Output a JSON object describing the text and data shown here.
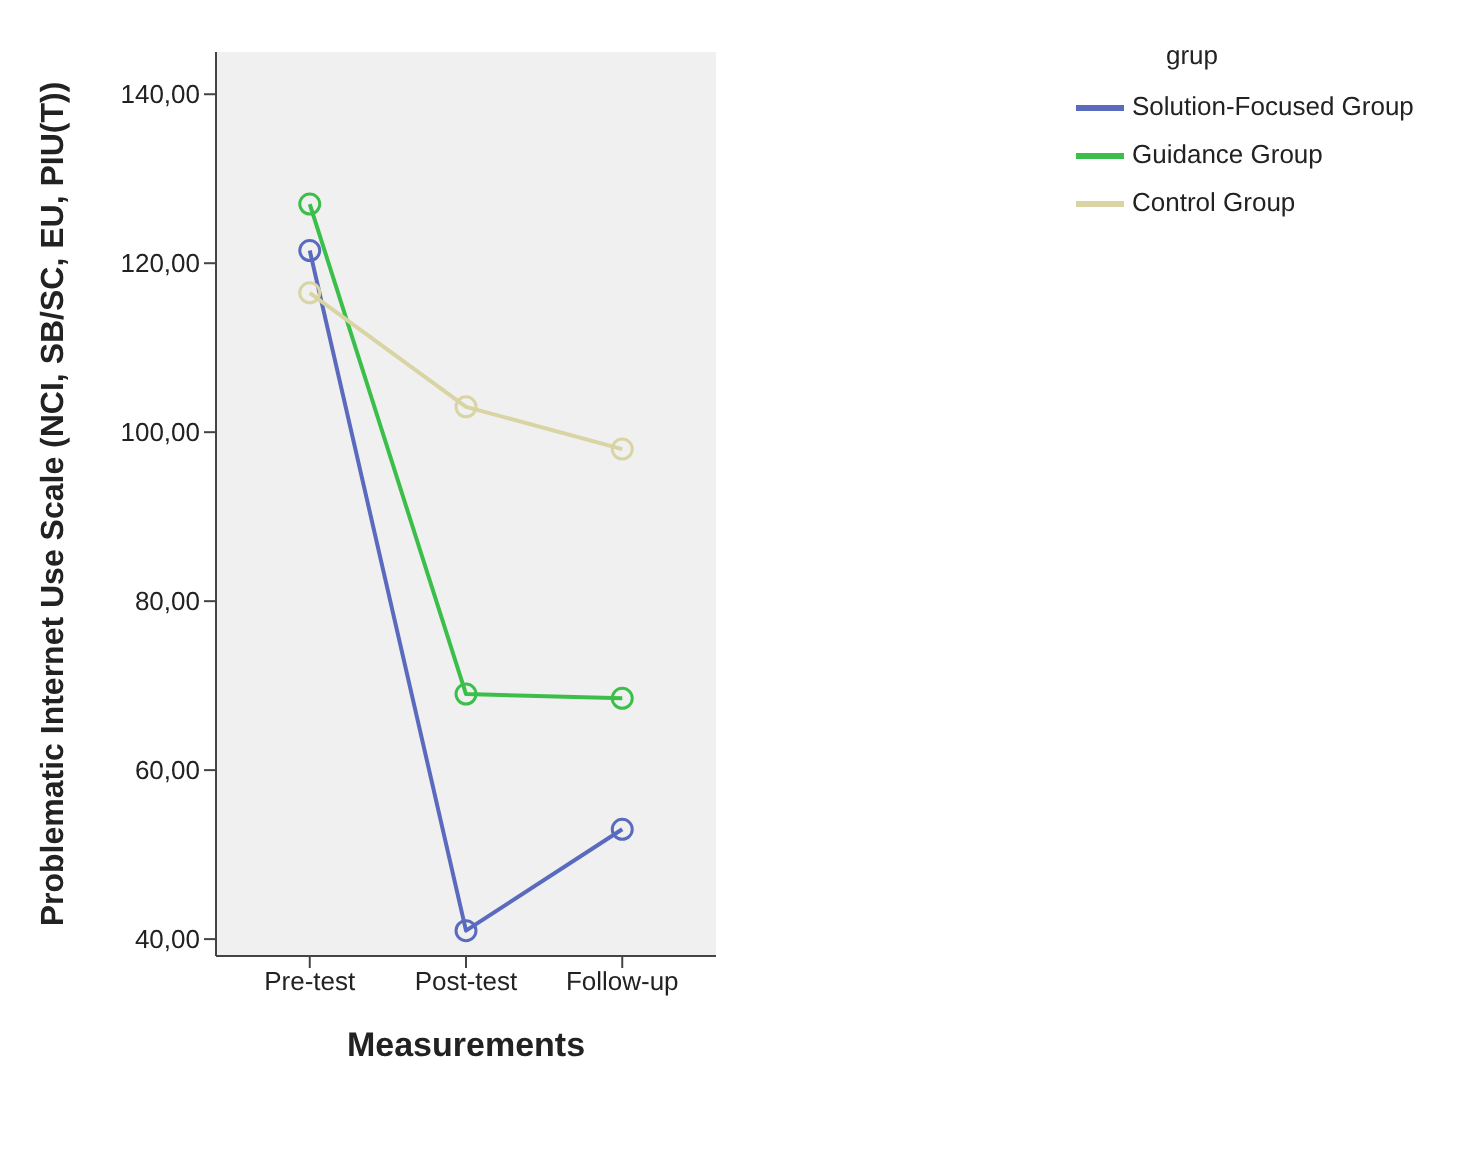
{
  "chart_data": {
    "type": "line",
    "xlabel": "Measurements",
    "ylabel": "Problematic Internet Use Scale (NCI, SB/SC, EU, PIU(T))",
    "legend_title": "grup",
    "categories": [
      "Pre-test",
      "Post-test",
      "Follow-up"
    ],
    "series": [
      {
        "name": "Solution-Focused Group",
        "color": "#5a6bbf",
        "values": [
          121.5,
          41,
          53
        ]
      },
      {
        "name": "Guidance Group",
        "color": "#3cbf4a",
        "values": [
          127,
          69,
          68.5
        ]
      },
      {
        "name": "Control Group",
        "color": "#d9d4a3",
        "values": [
          116.5,
          103,
          98
        ]
      }
    ],
    "ylim": [
      38,
      145
    ],
    "yticks": [
      {
        "value": 40,
        "label": "40,00"
      },
      {
        "value": 60,
        "label": "60,00"
      },
      {
        "value": 80,
        "label": "80,00"
      },
      {
        "value": 100,
        "label": "100,00"
      },
      {
        "value": 120,
        "label": "120,00"
      },
      {
        "value": 140,
        "label": "140,00"
      }
    ],
    "legend": "top right",
    "marker": "circle",
    "line_style": "solid",
    "grid": false
  }
}
